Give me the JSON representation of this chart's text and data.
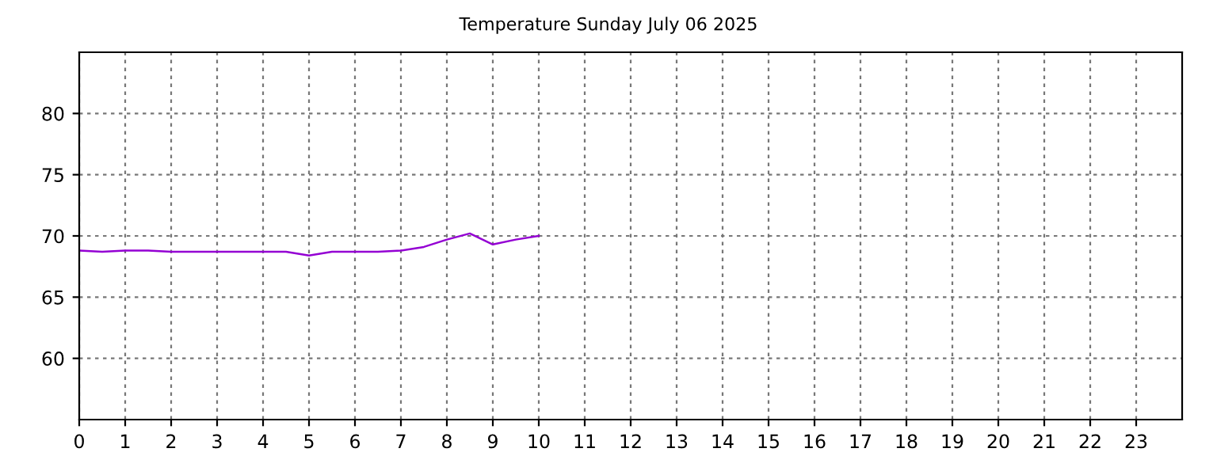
{
  "chart_data": {
    "type": "line",
    "title": "Temperature Sunday July 06 2025",
    "x": [
      0,
      0.5,
      1,
      1.5,
      2,
      2.5,
      3,
      3.5,
      4,
      4.5,
      5,
      5.5,
      6,
      6.5,
      7,
      7.5,
      8,
      8.5,
      9,
      9.5,
      10
    ],
    "series": [
      {
        "color": "#9400d3",
        "values": [
          68.8,
          68.7,
          68.8,
          68.8,
          68.7,
          68.7,
          68.7,
          68.7,
          68.7,
          68.7,
          68.4,
          68.7,
          68.7,
          68.7,
          68.8,
          69.1,
          69.7,
          70.2,
          69.3,
          69.7,
          70.0
        ]
      }
    ],
    "xlim": [
      0,
      24
    ],
    "xticks": [
      0,
      1,
      2,
      3,
      4,
      5,
      6,
      7,
      8,
      9,
      10,
      11,
      12,
      13,
      14,
      15,
      16,
      17,
      18,
      19,
      20,
      21,
      22,
      23
    ],
    "ylim": [
      55,
      85
    ],
    "yticks": [
      60,
      65,
      70,
      75,
      80
    ],
    "grid": true,
    "line_style": "solid"
  }
}
